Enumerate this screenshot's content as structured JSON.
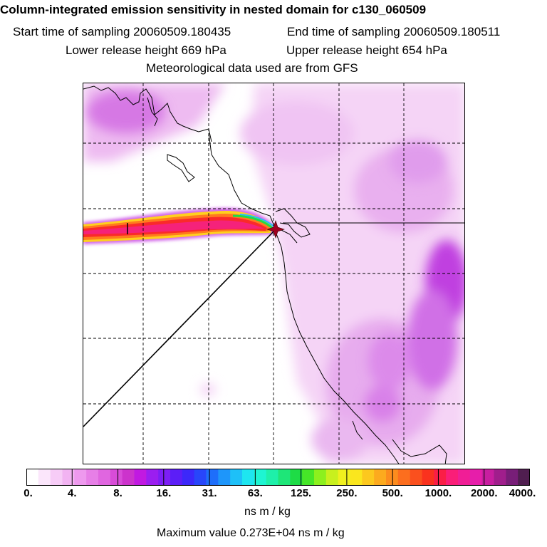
{
  "title": "Column-integrated emission sensitivity in nested domain for c130_060509",
  "sampling": {
    "start": "Start time of sampling 20060509.180435",
    "end": "End time of sampling 20060509.180511"
  },
  "release": {
    "lower": "Lower release height  669 hPa",
    "upper": "Upper release height  654 hPa"
  },
  "met_note": "Meteorological data used are from GFS",
  "colorbar": {
    "colors": [
      "#ffffff",
      "#fbe6fb",
      "#f7ccf7",
      "#f2b3f2",
      "#ee99ee",
      "#e77fe7",
      "#e066e0",
      "#d84cd8",
      "#cc33cc",
      "#c119e1",
      "#9b1ef0",
      "#7d1ef5",
      "#5c1ef7",
      "#3c28fa",
      "#2846fa",
      "#1e6efa",
      "#1e96fa",
      "#1ec0f8",
      "#1ee6f0",
      "#1ef5d2",
      "#1ef0aa",
      "#1ee678",
      "#1edc46",
      "#46e628",
      "#8cf01e",
      "#c8f01e",
      "#f0f01e",
      "#fae61e",
      "#fcc81e",
      "#fcaa1e",
      "#fc8c1e",
      "#fc6e1e",
      "#fa501e",
      "#fa321e",
      "#fa1e46",
      "#fa1e78",
      "#f01e96",
      "#e61eaa",
      "#c81ea0",
      "#a01e8c",
      "#781e78",
      "#501e50"
    ],
    "tick_labels": [
      "0.",
      "4.",
      "8.",
      "16.",
      "31.",
      "63.",
      "125.",
      "250.",
      "500.",
      "1000.",
      "2000.",
      "4000."
    ],
    "units": "ns m / kg"
  },
  "max_value": "Maximum value  0.273E+04 ns m / kg"
}
